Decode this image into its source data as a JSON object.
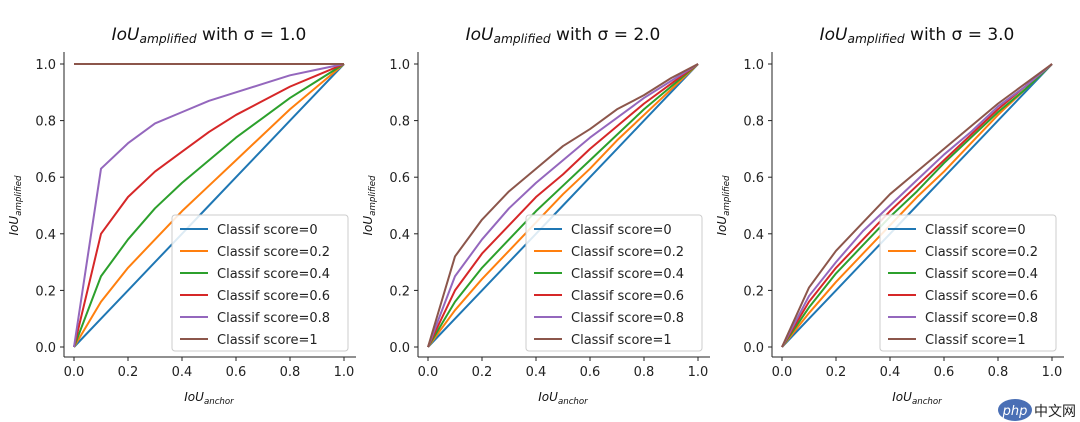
{
  "chart_data": [
    {
      "type": "line",
      "title": {
        "main": "IoU",
        "sub": "amplified",
        "rest": " with σ = 1.0"
      },
      "xlabel": {
        "main": "IoU",
        "sub": "anchor"
      },
      "ylabel": {
        "main": "IoU",
        "sub": "amplified"
      },
      "sigma": 1.0,
      "xlim": [
        0,
        1
      ],
      "ylim": [
        0,
        1
      ],
      "xticks": [
        "0.0",
        "0.2",
        "0.4",
        "0.6",
        "0.8",
        "1.0"
      ],
      "yticks": [
        "0.0",
        "0.2",
        "0.4",
        "0.6",
        "0.8",
        "1.0"
      ],
      "grid": false,
      "legend_position": "lower-right",
      "series": [
        {
          "name": "Classif score=0",
          "score": 0,
          "color": "#1f77b4",
          "x": [
            0,
            0.1,
            0.2,
            0.3,
            0.4,
            0.5,
            0.6,
            0.7,
            0.8,
            0.9,
            1.0
          ],
          "y": [
            0,
            0.1,
            0.2,
            0.3,
            0.4,
            0.5,
            0.6,
            0.7,
            0.8,
            0.9,
            1.0
          ]
        },
        {
          "name": "Classif score=0.2",
          "score": 0.2,
          "color": "#ff7f0e",
          "x": [
            0,
            0.1,
            0.2,
            0.3,
            0.4,
            0.5,
            0.6,
            0.7,
            0.8,
            0.9,
            1.0
          ],
          "y": [
            0,
            0.16,
            0.28,
            0.38,
            0.48,
            0.57,
            0.66,
            0.75,
            0.84,
            0.92,
            1.0
          ]
        },
        {
          "name": "Classif score=0.4",
          "score": 0.4,
          "color": "#2ca02c",
          "x": [
            0,
            0.1,
            0.2,
            0.3,
            0.4,
            0.5,
            0.6,
            0.7,
            0.8,
            0.9,
            1.0
          ],
          "y": [
            0,
            0.25,
            0.38,
            0.49,
            0.58,
            0.66,
            0.74,
            0.81,
            0.88,
            0.94,
            1.0
          ]
        },
        {
          "name": "Classif score=0.6",
          "score": 0.6,
          "color": "#d62728",
          "x": [
            0,
            0.1,
            0.2,
            0.3,
            0.4,
            0.5,
            0.6,
            0.7,
            0.8,
            0.9,
            1.0
          ],
          "y": [
            0,
            0.4,
            0.53,
            0.62,
            0.69,
            0.76,
            0.82,
            0.87,
            0.92,
            0.96,
            1.0
          ]
        },
        {
          "name": "Classif score=0.8",
          "score": 0.8,
          "color": "#9467bd",
          "x": [
            0,
            0.1,
            0.2,
            0.3,
            0.4,
            0.5,
            0.6,
            0.7,
            0.8,
            0.9,
            1.0
          ],
          "y": [
            0,
            0.63,
            0.72,
            0.79,
            0.83,
            0.87,
            0.9,
            0.93,
            0.96,
            0.98,
            1.0
          ]
        },
        {
          "name": "Classif score=1",
          "score": 1,
          "color": "#8c564b",
          "x": [
            0,
            0.1,
            0.2,
            0.3,
            0.4,
            0.5,
            0.6,
            0.7,
            0.8,
            0.9,
            1.0
          ],
          "y": [
            1,
            1,
            1,
            1,
            1,
            1,
            1,
            1,
            1,
            1,
            1
          ]
        }
      ]
    },
    {
      "type": "line",
      "title": {
        "main": "IoU",
        "sub": "amplified",
        "rest": " with σ = 2.0"
      },
      "xlabel": {
        "main": "IoU",
        "sub": "anchor"
      },
      "ylabel": {
        "main": "IoU",
        "sub": "amplified"
      },
      "sigma": 2.0,
      "xlim": [
        0,
        1
      ],
      "ylim": [
        0,
        1
      ],
      "xticks": [
        "0.0",
        "0.2",
        "0.4",
        "0.6",
        "0.8",
        "1.0"
      ],
      "yticks": [
        "0.0",
        "0.2",
        "0.4",
        "0.6",
        "0.8",
        "1.0"
      ],
      "grid": false,
      "legend_position": "lower-right",
      "series": [
        {
          "name": "Classif score=0",
          "score": 0,
          "color": "#1f77b4",
          "x": [
            0,
            0.1,
            0.2,
            0.3,
            0.4,
            0.5,
            0.6,
            0.7,
            0.8,
            0.9,
            1.0
          ],
          "y": [
            0,
            0.1,
            0.2,
            0.3,
            0.4,
            0.5,
            0.6,
            0.7,
            0.8,
            0.9,
            1.0
          ]
        },
        {
          "name": "Classif score=0.2",
          "score": 0.2,
          "color": "#ff7f0e",
          "x": [
            0,
            0.1,
            0.2,
            0.3,
            0.4,
            0.5,
            0.6,
            0.7,
            0.8,
            0.9,
            1.0
          ],
          "y": [
            0,
            0.13,
            0.24,
            0.34,
            0.44,
            0.54,
            0.63,
            0.73,
            0.82,
            0.91,
            1.0
          ]
        },
        {
          "name": "Classif score=0.4",
          "score": 0.4,
          "color": "#2ca02c",
          "x": [
            0,
            0.1,
            0.2,
            0.3,
            0.4,
            0.5,
            0.6,
            0.7,
            0.8,
            0.9,
            1.0
          ],
          "y": [
            0,
            0.16,
            0.28,
            0.38,
            0.48,
            0.57,
            0.66,
            0.75,
            0.84,
            0.92,
            1.0
          ]
        },
        {
          "name": "Classif score=0.6",
          "score": 0.6,
          "color": "#d62728",
          "x": [
            0,
            0.1,
            0.2,
            0.3,
            0.4,
            0.5,
            0.6,
            0.7,
            0.8,
            0.9,
            1.0
          ],
          "y": [
            0,
            0.2,
            0.33,
            0.43,
            0.53,
            0.61,
            0.7,
            0.78,
            0.86,
            0.93,
            1.0
          ]
        },
        {
          "name": "Classif score=0.8",
          "score": 0.8,
          "color": "#9467bd",
          "x": [
            0,
            0.1,
            0.2,
            0.3,
            0.4,
            0.5,
            0.6,
            0.7,
            0.8,
            0.9,
            1.0
          ],
          "y": [
            0,
            0.25,
            0.38,
            0.49,
            0.58,
            0.66,
            0.74,
            0.81,
            0.88,
            0.94,
            1.0
          ]
        },
        {
          "name": "Classif score=1",
          "score": 1,
          "color": "#8c564b",
          "x": [
            0,
            0.1,
            0.2,
            0.3,
            0.4,
            0.5,
            0.6,
            0.7,
            0.8,
            0.9,
            1.0
          ],
          "y": [
            0,
            0.32,
            0.45,
            0.55,
            0.63,
            0.71,
            0.77,
            0.84,
            0.89,
            0.95,
            1.0
          ]
        }
      ]
    },
    {
      "type": "line",
      "title": {
        "main": "IoU",
        "sub": "amplified",
        "rest": " with σ = 3.0"
      },
      "xlabel": {
        "main": "IoU",
        "sub": "anchor"
      },
      "ylabel": {
        "main": "IoU",
        "sub": "amplified"
      },
      "sigma": 3.0,
      "xlim": [
        0,
        1
      ],
      "ylim": [
        0,
        1
      ],
      "xticks": [
        "0.0",
        "0.2",
        "0.4",
        "0.6",
        "0.8",
        "1.0"
      ],
      "yticks": [
        "0.0",
        "0.2",
        "0.4",
        "0.6",
        "0.8",
        "1.0"
      ],
      "grid": false,
      "legend_position": "lower-right",
      "series": [
        {
          "name": "Classif score=0",
          "score": 0,
          "color": "#1f77b4",
          "x": [
            0,
            0.1,
            0.2,
            0.3,
            0.4,
            0.5,
            0.6,
            0.7,
            0.8,
            0.9,
            1.0
          ],
          "y": [
            0,
            0.1,
            0.2,
            0.3,
            0.4,
            0.5,
            0.6,
            0.7,
            0.8,
            0.9,
            1.0
          ]
        },
        {
          "name": "Classif score=0.2",
          "score": 0.2,
          "color": "#ff7f0e",
          "x": [
            0,
            0.1,
            0.2,
            0.3,
            0.4,
            0.5,
            0.6,
            0.7,
            0.8,
            0.9,
            1.0
          ],
          "y": [
            0,
            0.12,
            0.23,
            0.33,
            0.43,
            0.53,
            0.62,
            0.72,
            0.82,
            0.91,
            1.0
          ]
        },
        {
          "name": "Classif score=0.4",
          "score": 0.4,
          "color": "#2ca02c",
          "x": [
            0,
            0.1,
            0.2,
            0.3,
            0.4,
            0.5,
            0.6,
            0.7,
            0.8,
            0.9,
            1.0
          ],
          "y": [
            0,
            0.14,
            0.26,
            0.36,
            0.46,
            0.55,
            0.65,
            0.74,
            0.83,
            0.91,
            1.0
          ]
        },
        {
          "name": "Classif score=0.6",
          "score": 0.6,
          "color": "#d62728",
          "x": [
            0,
            0.1,
            0.2,
            0.3,
            0.4,
            0.5,
            0.6,
            0.7,
            0.8,
            0.9,
            1.0
          ],
          "y": [
            0,
            0.16,
            0.28,
            0.38,
            0.48,
            0.57,
            0.66,
            0.75,
            0.84,
            0.92,
            1.0
          ]
        },
        {
          "name": "Classif score=0.8",
          "score": 0.8,
          "color": "#9467bd",
          "x": [
            0,
            0.1,
            0.2,
            0.3,
            0.4,
            0.5,
            0.6,
            0.7,
            0.8,
            0.9,
            1.0
          ],
          "y": [
            0,
            0.18,
            0.3,
            0.41,
            0.5,
            0.59,
            0.68,
            0.76,
            0.85,
            0.92,
            1.0
          ]
        },
        {
          "name": "Classif score=1",
          "score": 1,
          "color": "#8c564b",
          "x": [
            0,
            0.1,
            0.2,
            0.3,
            0.4,
            0.5,
            0.6,
            0.7,
            0.8,
            0.9,
            1.0
          ],
          "y": [
            0,
            0.21,
            0.34,
            0.44,
            0.54,
            0.62,
            0.7,
            0.78,
            0.86,
            0.93,
            1.0
          ]
        }
      ]
    }
  ],
  "watermark": {
    "logo_text": "php",
    "text": "中文网"
  }
}
